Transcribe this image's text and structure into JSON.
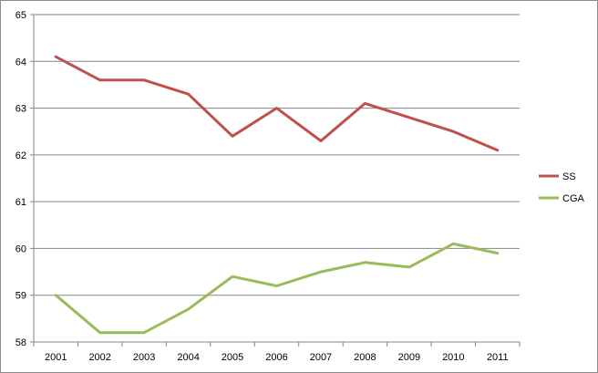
{
  "chart_data": {
    "type": "line",
    "categories": [
      "2001",
      "2002",
      "2003",
      "2004",
      "2005",
      "2006",
      "2007",
      "2008",
      "2009",
      "2010",
      "2011"
    ],
    "series": [
      {
        "name": "SS",
        "color": "#c0504d",
        "values": [
          64.1,
          63.6,
          63.6,
          63.3,
          62.4,
          63.0,
          62.3,
          63.1,
          62.8,
          62.5,
          62.1
        ]
      },
      {
        "name": "CGA",
        "color": "#9bbb59",
        "values": [
          59.0,
          58.2,
          58.2,
          58.7,
          59.4,
          59.2,
          59.5,
          59.7,
          59.6,
          60.1,
          59.9
        ]
      }
    ],
    "title": "",
    "xlabel": "",
    "ylabel": "",
    "ylim": [
      58,
      65
    ],
    "yticks": [
      "58",
      "59",
      "60",
      "61",
      "62",
      "63",
      "64",
      "65"
    ],
    "grid": "horizontal",
    "legend_position": "right"
  }
}
